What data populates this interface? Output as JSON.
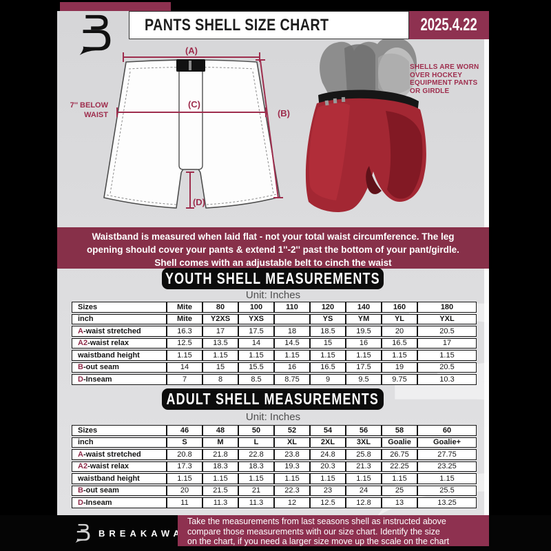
{
  "header": {
    "title": "PANTS SHELL SIZE CHART",
    "date": "2025.4.22"
  },
  "diagram": {
    "label_a": "(A)",
    "label_b": "(B)",
    "label_c": "(C)",
    "label_d": "(D)",
    "below_waist": [
      "7'' BELOW",
      "WAIST"
    ]
  },
  "photo_note": [
    "SHELLS ARE WORN",
    "OVER HOCKEY",
    "EQUIPMENT PANTS",
    "OR GIRDLE"
  ],
  "notice": [
    "Waistband is measured when laid flat - not your total waist circumference. The leg",
    "opening should cover your pants & extend 1''-2'' past the bottom of your pant/girdle.",
    "Shell comes with an adjustable belt to cinch the waist"
  ],
  "youth": {
    "banner": "YOUTH SHELL MEASUREMENTS",
    "unit": "Unit: Inches",
    "rows": [
      {
        "prefix": "",
        "label": "Sizes",
        "bold": true,
        "cells": [
          "Mite",
          "80",
          "100",
          "110",
          "120",
          "140",
          "160",
          "180"
        ]
      },
      {
        "prefix": "",
        "label": "inch",
        "bold": true,
        "cells": [
          "Mite",
          "Y2XS",
          "YXS",
          "",
          "YS",
          "YM",
          "YL",
          "YXL"
        ]
      },
      {
        "prefix": "A",
        "label": "-waist stretched",
        "bold": false,
        "cells": [
          "16.3",
          "17",
          "17.5",
          "18",
          "18.5",
          "19.5",
          "20",
          "20.5"
        ]
      },
      {
        "prefix": "A2",
        "label": "-waist relax",
        "bold": false,
        "cells": [
          "12.5",
          "13.5",
          "14",
          "14.5",
          "15",
          "16",
          "16.5",
          "17"
        ]
      },
      {
        "prefix": "",
        "label": "waistband height",
        "bold": false,
        "cells": [
          "1.15",
          "1.15",
          "1.15",
          "1.15",
          "1.15",
          "1.15",
          "1.15",
          "1.15"
        ]
      },
      {
        "prefix": "B",
        "label": "-out seam",
        "bold": false,
        "cells": [
          "14",
          "15",
          "15.5",
          "16",
          "16.5",
          "17.5",
          "19",
          "20.5"
        ]
      },
      {
        "prefix": "D",
        "label": "-Inseam",
        "bold": false,
        "cells": [
          "7",
          "8",
          "8.5",
          "8.75",
          "9",
          "9.5",
          "9.75",
          "10.3"
        ]
      }
    ]
  },
  "adult": {
    "banner": "ADULT SHELL MEASUREMENTS",
    "unit": "Unit: Inches",
    "rows": [
      {
        "prefix": "",
        "label": "Sizes",
        "bold": true,
        "cells": [
          "46",
          "48",
          "50",
          "52",
          "54",
          "56",
          "58",
          "60"
        ]
      },
      {
        "prefix": "",
        "label": "inch",
        "bold": true,
        "cells": [
          "S",
          "M",
          "L",
          "XL",
          "2XL",
          "3XL",
          "Goalie",
          "Goalie+"
        ]
      },
      {
        "prefix": "A",
        "label": "-waist stretched",
        "bold": false,
        "cells": [
          "20.8",
          "21.8",
          "22.8",
          "23.8",
          "24.8",
          "25.8",
          "26.75",
          "27.75"
        ]
      },
      {
        "prefix": "A2",
        "label": "-waist relax",
        "bold": false,
        "cells": [
          "17.3",
          "18.3",
          "18.3",
          "19.3",
          "20.3",
          "21.3",
          "22.25",
          "23.25"
        ]
      },
      {
        "prefix": "",
        "label": "waistband height",
        "bold": false,
        "cells": [
          "1.15",
          "1.15",
          "1.15",
          "1.15",
          "1.15",
          "1.15",
          "1.15",
          "1.15"
        ]
      },
      {
        "prefix": "B",
        "label": "-out seam",
        "bold": false,
        "cells": [
          "20",
          "21.5",
          "21",
          "22.3",
          "23",
          "24",
          "25",
          "25.5"
        ]
      },
      {
        "prefix": "D",
        "label": "-Inseam",
        "bold": false,
        "cells": [
          "11",
          "11.3",
          "11.3",
          "12",
          "12.5",
          "12.8",
          "13",
          "13.25"
        ]
      }
    ]
  },
  "footer": {
    "brand": "BREAKAWAY",
    "note": [
      "Take the measurements from last seasons shell as instructed above",
      "compare those measurements  with our size chart. Identify the size",
      "on the chart, if you need a larger size move up the scale on the chart"
    ]
  },
  "colors": {
    "accent_maroon": "#8E3150",
    "notice_maroon": "#873049",
    "diagram_maroon": "#9E2D4D",
    "banner_black": "#0C0C0C",
    "page_gray": "#DCDCDE",
    "shell_red": "#A32733"
  }
}
